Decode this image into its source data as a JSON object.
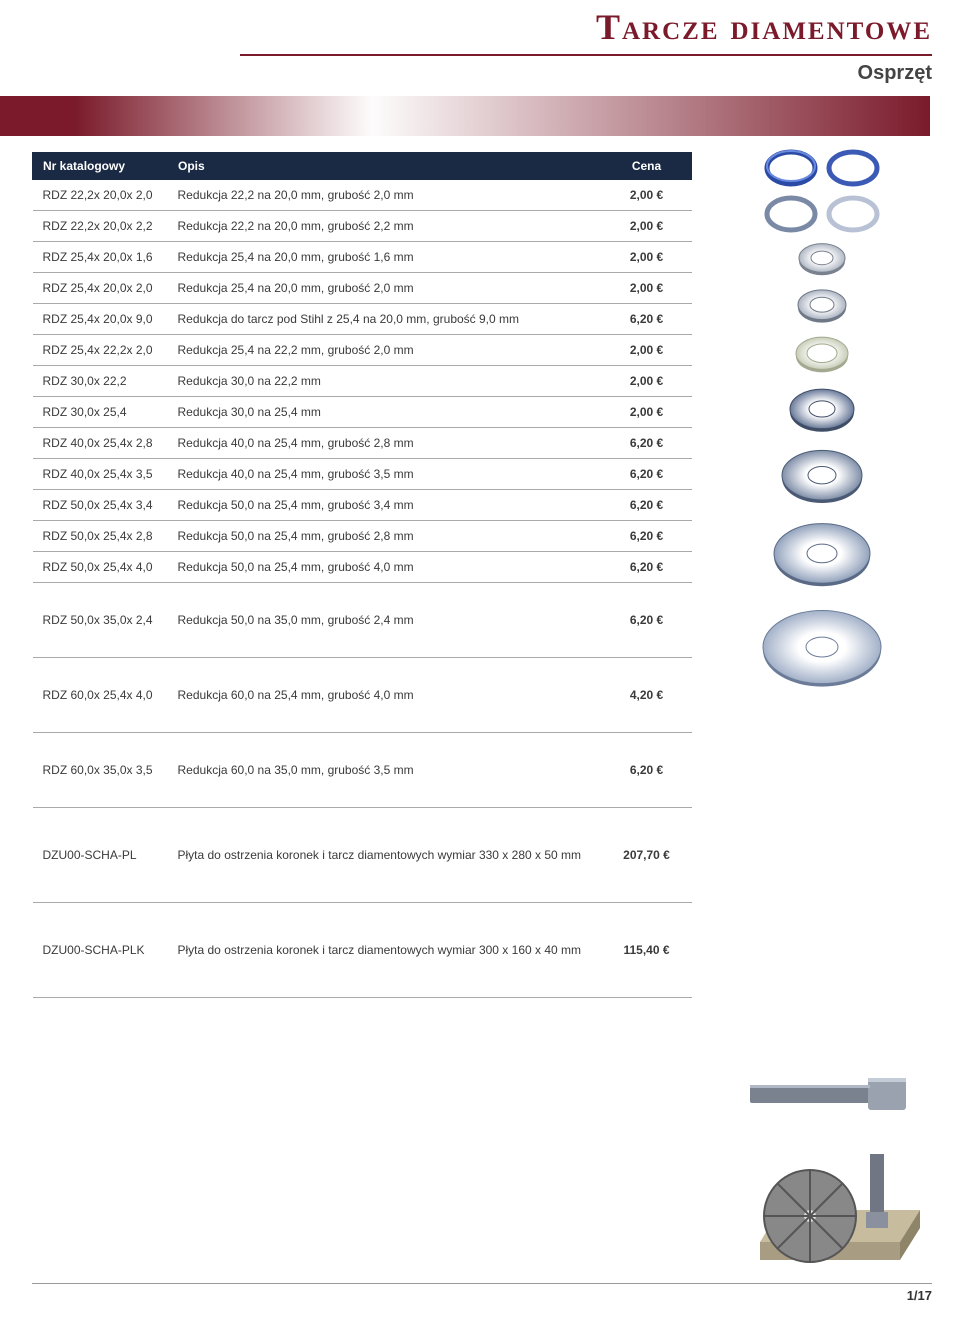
{
  "header": {
    "title": "Tarcze diamentowe",
    "subtitle": "Osprzęt",
    "title_color": "#7a1a2a"
  },
  "table": {
    "columns": [
      "Nr katalogowy",
      "Opis",
      "Cena"
    ],
    "header_bg": "#1a2a44",
    "header_fg": "#ffffff",
    "rows": [
      {
        "sku": "RDZ 22,2x 20,0x 2,0",
        "desc": "Redukcja 22,2 na 20,0 mm, grubość 2,0 mm",
        "price": "2,00 €",
        "gap": ""
      },
      {
        "sku": "RDZ 22,2x 20,0x 2,2",
        "desc": "Redukcja 22,2 na 20,0 mm, grubość 2,2 mm",
        "price": "2,00 €",
        "gap": ""
      },
      {
        "sku": "RDZ 25,4x 20,0x 1,6",
        "desc": "Redukcja 25,4 na 20,0 mm, grubość 1,6 mm",
        "price": "2,00 €",
        "gap": ""
      },
      {
        "sku": "RDZ 25,4x 20,0x 2,0",
        "desc": "Redukcja 25,4 na 20,0 mm, grubość 2,0 mm",
        "price": "2,00 €",
        "gap": ""
      },
      {
        "sku": "RDZ 25,4x 20,0x 9,0",
        "desc": "Redukcja do tarcz pod Stihl z 25,4 na 20,0 mm, grubość 9,0 mm",
        "price": "6,20 €",
        "gap": ""
      },
      {
        "sku": "RDZ 25,4x 22,2x 2,0",
        "desc": "Redukcja 25,4 na 22,2 mm, grubość 2,0 mm",
        "price": "2,00 €",
        "gap": ""
      },
      {
        "sku": "RDZ 30,0x 22,2",
        "desc": "Redukcja 30,0 na 22,2 mm",
        "price": "2,00 €",
        "gap": ""
      },
      {
        "sku": "RDZ 30,0x 25,4",
        "desc": "Redukcja 30,0 na 25,4 mm",
        "price": "2,00 €",
        "gap": ""
      },
      {
        "sku": "RDZ 40,0x 25,4x 2,8",
        "desc": "Redukcja 40,0 na 25,4 mm, grubość 2,8 mm",
        "price": "6,20 €",
        "gap": ""
      },
      {
        "sku": "RDZ 40,0x 25,4x 3,5",
        "desc": "Redukcja 40,0 na 25,4 mm, grubość 3,5 mm",
        "price": "6,20 €",
        "gap": ""
      },
      {
        "sku": "RDZ 50,0x 25,4x 3,4",
        "desc": "Redukcja 50,0 na 25,4 mm, grubość 3,4 mm",
        "price": "6,20 €",
        "gap": ""
      },
      {
        "sku": "RDZ 50,0x 25,4x 2,8",
        "desc": "Redukcja 50,0 na 25,4 mm, grubość 2,8 mm",
        "price": "6,20 €",
        "gap": ""
      },
      {
        "sku": "RDZ 50,0x 25,4x 4,0",
        "desc": "Redukcja 50,0 na 25,4 mm, grubość 4,0 mm",
        "price": "6,20 €",
        "gap": ""
      },
      {
        "sku": "RDZ 50,0x 35,0x 2,4",
        "desc": "Redukcja 50,0 na 35,0 mm, grubość 2,4 mm",
        "price": "6,20 €",
        "gap": "tall"
      },
      {
        "sku": "RDZ 60,0x 25,4x 4,0",
        "desc": "Redukcja 60,0 na 25,4 mm, grubość 4,0 mm",
        "price": "4,20 €",
        "gap": "tall"
      },
      {
        "sku": "RDZ 60,0x 35,0x 3,5",
        "desc": "Redukcja 60,0 na 35,0 mm, grubość 3,5 mm",
        "price": "6,20 €",
        "gap": "tall"
      },
      {
        "sku": "DZU00-SCHA-PL",
        "desc": "Płyta do ostrzenia koronek i tarcz diamentowych wymiar 330 x 280 x 50 mm",
        "price": "207,70 €",
        "gap": "tall2"
      },
      {
        "sku": "DZU00-SCHA-PLK",
        "desc": "Płyta do ostrzenia koronek i tarcz diamentowych wymiar 300 x 160 x 40 mm",
        "price": "115,40 €",
        "gap": "tall2"
      }
    ]
  },
  "images": {
    "rings": [
      {
        "color1": "#2a4aa5",
        "color2": "#4a6ac0"
      },
      {
        "color1": "#6a7a96",
        "color2": "#aeb8cc"
      }
    ],
    "washers": [
      {
        "outer": 46,
        "inner": 22,
        "fill": "#b0b8c4",
        "edge": "#7a828f"
      },
      {
        "outer": 48,
        "inner": 24,
        "fill": "#acb4c2",
        "edge": "#6f7886"
      },
      {
        "outer": 52,
        "inner": 30,
        "fill": "#c8cdb8",
        "edge": "#a3a990"
      },
      {
        "outer": 64,
        "inner": 26,
        "fill": "#6a7a9a",
        "edge": "#3f4d66"
      },
      {
        "outer": 80,
        "inner": 28,
        "fill": "#7f8ea8",
        "edge": "#4b5a74"
      },
      {
        "outer": 96,
        "inner": 30,
        "fill": "#92a2bc",
        "edge": "#5a6a86"
      },
      {
        "outer": 118,
        "inner": 32,
        "fill": "#a2b0c8",
        "edge": "#6c7c98"
      }
    ]
  },
  "footer": {
    "page": "1/17"
  }
}
